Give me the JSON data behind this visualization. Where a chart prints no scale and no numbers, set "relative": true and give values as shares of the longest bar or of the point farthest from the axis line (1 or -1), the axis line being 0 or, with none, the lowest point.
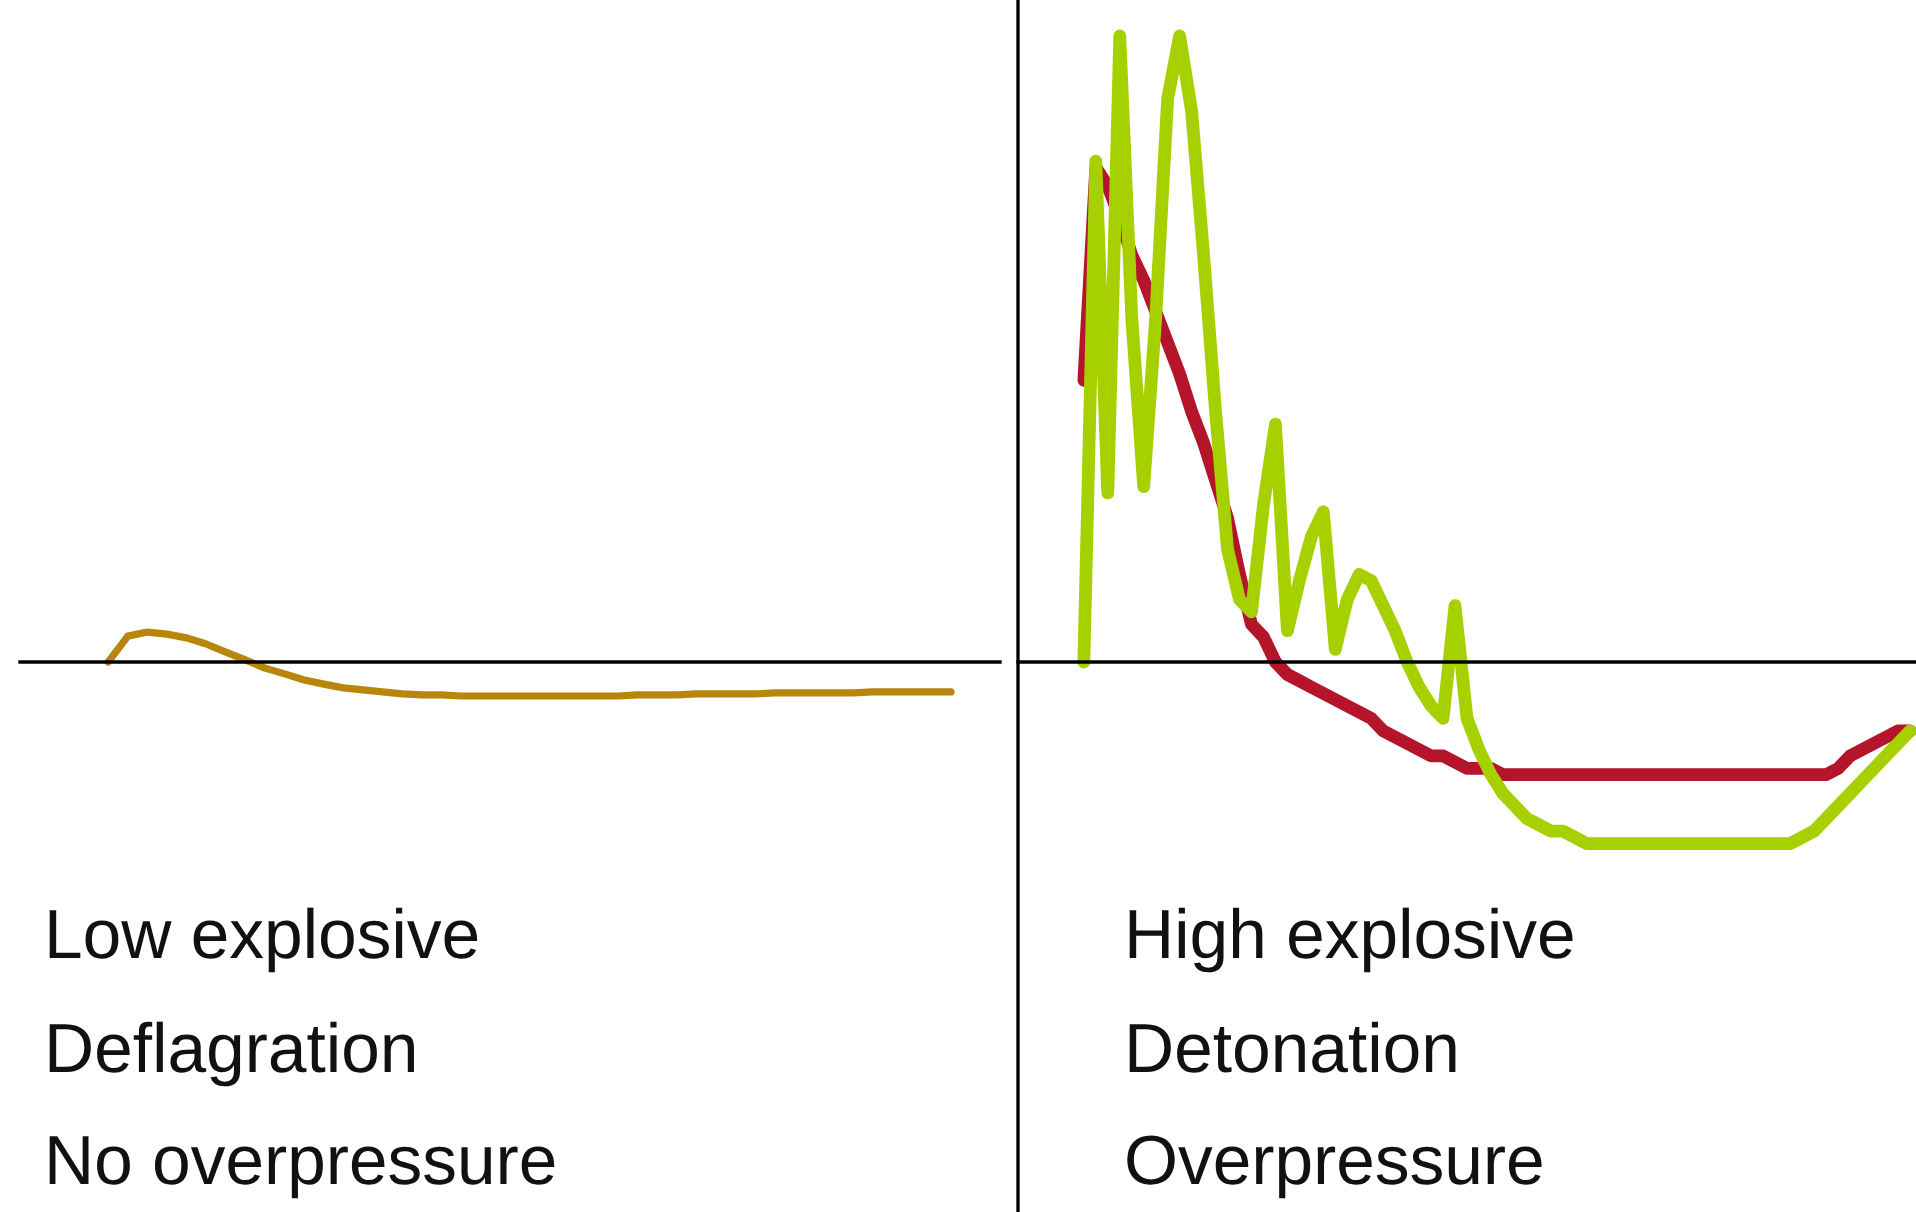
{
  "chart_data": [
    {
      "type": "line",
      "relative": true,
      "categories": [
        null,
        null,
        null,
        null,
        null,
        null,
        null,
        null,
        null,
        null,
        null,
        null,
        null,
        null,
        null,
        null,
        null,
        null,
        null,
        null,
        null,
        null,
        null,
        null,
        null,
        null,
        null,
        null,
        null,
        null,
        null,
        null,
        null,
        null,
        null,
        null,
        null,
        null,
        null,
        null,
        null,
        null,
        null,
        null,
        null,
        null,
        null,
        null,
        null,
        null
      ],
      "series": [
        {
          "color": "#b8860b",
          "values": [
            null,
            null,
            null,
            null,
            0.0,
            0.76,
            0.88,
            0.82,
            0.71,
            0.53,
            0.29,
            0.06,
            -0.18,
            -0.35,
            -0.53,
            -0.65,
            -0.76,
            -0.82,
            -0.88,
            -0.94,
            -0.97,
            -0.97,
            -1,
            -1,
            -1,
            -1,
            -1,
            -1,
            -1,
            -1,
            -1,
            -0.97,
            -0.97,
            -0.97,
            -0.94,
            -0.94,
            -0.94,
            -0.94,
            -0.91,
            -0.91,
            -0.91,
            -0.91,
            -0.91,
            -0.88,
            -0.88,
            -0.88,
            -0.88,
            -0.88,
            null,
            null
          ]
        }
      ],
      "annotations": [
        "Low explosive",
        "Deflagration",
        "No overpressure"
      ]
    },
    {
      "type": "line",
      "relative": true,
      "categories": [
        null,
        null,
        null,
        null,
        null,
        null,
        null,
        null,
        null,
        null,
        null,
        null,
        null,
        null,
        null,
        null,
        null,
        null,
        null,
        null,
        null,
        null,
        null,
        null,
        null,
        null,
        null,
        null,
        null,
        null,
        null,
        null,
        null,
        null,
        null,
        null,
        null,
        null,
        null,
        null,
        null,
        null,
        null,
        null,
        null,
        null,
        null,
        null,
        null,
        null,
        null,
        null,
        null,
        null,
        null,
        null,
        null,
        null,
        null,
        null,
        null,
        null,
        null,
        null,
        null,
        null,
        null,
        null,
        null,
        null,
        null,
        null,
        null,
        null,
        null
      ],
      "series": [
        {
          "color": "#b5152b",
          "values": [
            null,
            null,
            null,
            null,
            null,
            0.45,
            0.79,
            0.76,
            0.71,
            0.65,
            0.61,
            0.56,
            0.51,
            0.46,
            0.4,
            0.35,
            0.29,
            0.23,
            0.14,
            0.06,
            0.04,
            0.0,
            -0.02,
            -0.03,
            -0.04,
            -0.05,
            -0.06,
            -0.07,
            -0.08,
            -0.09,
            -0.11,
            -0.12,
            -0.13,
            -0.14,
            -0.15,
            -0.15,
            -0.16,
            -0.17,
            -0.17,
            -0.17,
            -0.18,
            -0.18,
            -0.18,
            -0.18,
            -0.18,
            -0.18,
            -0.18,
            -0.18,
            -0.18,
            -0.18,
            -0.18,
            -0.18,
            -0.18,
            -0.18,
            -0.18,
            -0.18,
            -0.18,
            -0.18,
            -0.18,
            -0.18,
            -0.18,
            -0.18,
            -0.18,
            -0.18,
            -0.18,
            -0.18,
            -0.18,
            -0.18,
            -0.17,
            -0.15,
            -0.14,
            -0.13,
            -0.12,
            -0.11,
            -0.11
          ]
        },
        {
          "color": "#a6d000",
          "values": [
            null,
            null,
            null,
            null,
            null,
            0.0,
            0.8,
            0.27,
            1.0,
            0.55,
            0.28,
            0.55,
            0.9,
            1.0,
            0.88,
            0.65,
            0.4,
            0.18,
            0.1,
            0.08,
            0.25,
            0.38,
            0.05,
            0.13,
            0.2,
            0.24,
            0.02,
            0.1,
            0.14,
            0.13,
            0.09,
            0.05,
            0.0,
            -0.04,
            -0.07,
            -0.09,
            0.09,
            -0.09,
            -0.14,
            -0.18,
            -0.21,
            -0.23,
            -0.25,
            -0.26,
            -0.27,
            -0.27,
            -0.28,
            -0.29,
            -0.29,
            -0.29,
            -0.29,
            -0.29,
            -0.29,
            -0.29,
            -0.29,
            -0.29,
            -0.29,
            -0.29,
            -0.29,
            -0.29,
            -0.29,
            -0.29,
            -0.29,
            -0.29,
            -0.29,
            -0.28,
            -0.27,
            -0.25,
            -0.23,
            -0.21,
            -0.19,
            -0.17,
            -0.15,
            -0.13,
            -0.11
          ]
        }
      ],
      "annotations": [
        "High explosive",
        "Detonation",
        "Overpressure"
      ]
    }
  ]
}
